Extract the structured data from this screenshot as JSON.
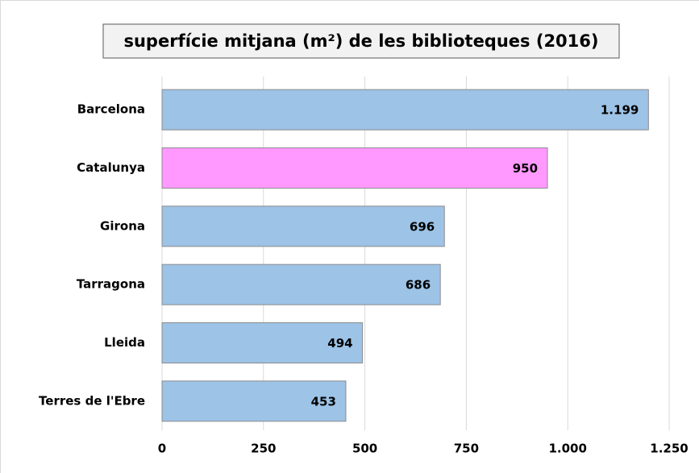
{
  "chart_data": {
    "type": "bar",
    "orientation": "horizontal",
    "title": "superfície mitjana (m²) de les biblioteques (2016)",
    "categories": [
      "Barcelona",
      "Catalunya",
      "Girona",
      "Tarragona",
      "Lleida",
      "Terres de l'Ebre"
    ],
    "values": [
      1199,
      950,
      696,
      686,
      494,
      453
    ],
    "value_labels": [
      "1.199",
      "950",
      "696",
      "686",
      "494",
      "453"
    ],
    "colors": [
      "#9dc3e6",
      "#ff99ff",
      "#9dc3e6",
      "#9dc3e6",
      "#9dc3e6",
      "#9dc3e6"
    ],
    "xlim": [
      0,
      1250
    ],
    "xticks": [
      0,
      250,
      500,
      750,
      {
        "value": 1000,
        "label": "1.000"
      },
      {
        "value": 1250,
        "label": "1.250"
      }
    ],
    "grid": true
  }
}
